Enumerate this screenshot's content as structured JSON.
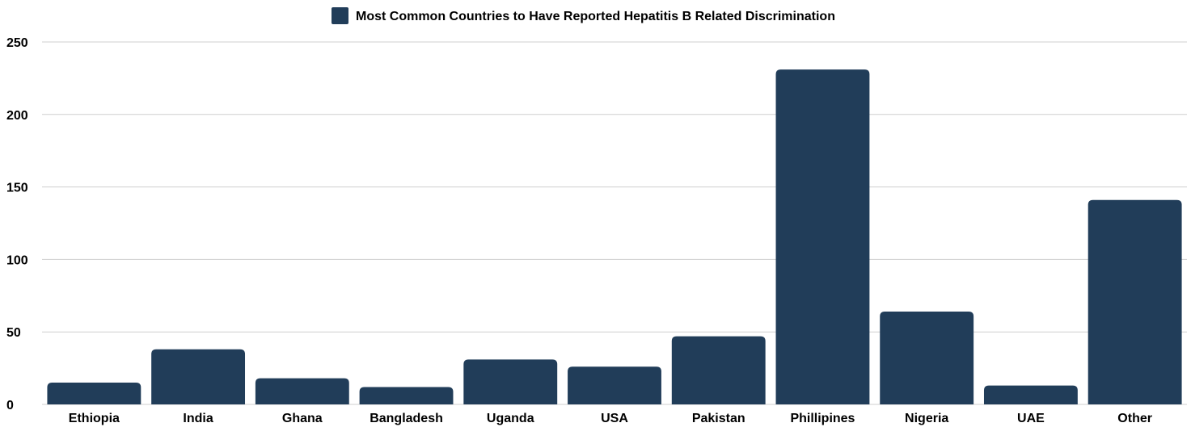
{
  "chart_data": {
    "type": "bar",
    "categories": [
      "Ethiopia",
      "India",
      "Ghana",
      "Bangladesh",
      "Uganda",
      "USA",
      "Pakistan",
      "Phillipines",
      "Nigeria",
      "UAE",
      "Other"
    ],
    "series": [
      {
        "name": "Most Common Countries to Have Reported Hepatitis B Related Discrimination",
        "values": [
          15,
          38,
          18,
          12,
          31,
          26,
          47,
          231,
          64,
          13,
          141
        ],
        "color": "#213d59"
      }
    ],
    "ylim": [
      0,
      250
    ],
    "yticks": [
      0,
      50,
      100,
      150,
      200,
      250
    ],
    "grid": true,
    "legend_position": "top-center"
  }
}
